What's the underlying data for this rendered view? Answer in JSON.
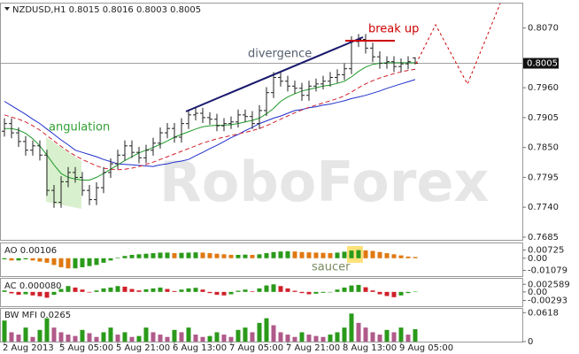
{
  "chart_data": [
    {
      "type": "ohlc",
      "header": "NZDUSD,H1  0.8015 0.8016 0.8003 0.8005",
      "categories": [
        "2 Aug 2013",
        null,
        null,
        null,
        null,
        null,
        null,
        null,
        "5 Aug 05:00",
        null,
        null,
        null,
        null,
        null,
        null,
        null,
        "5 Aug 21:00",
        null,
        null,
        null,
        null,
        null,
        null,
        null,
        "6 Aug 13:00",
        null,
        null,
        null,
        null,
        null,
        null,
        null,
        "7 Aug 05:00",
        null,
        null,
        null,
        null,
        null,
        null,
        null,
        "7 Aug 21:00",
        null,
        null,
        null,
        null,
        null,
        null,
        null,
        "8 Aug 13:00",
        null,
        null,
        null,
        null,
        null,
        null,
        null,
        "9 Aug 05:00",
        null,
        null
      ],
      "open": [
        0.788,
        0.7894,
        0.7877,
        0.7861,
        0.7845,
        0.7853,
        0.7836,
        0.7771,
        0.7749,
        0.7787,
        0.7804,
        0.7795,
        0.7771,
        0.7754,
        0.7776,
        0.7804,
        0.782,
        0.7836,
        0.7853,
        0.7841,
        0.7831,
        0.7845,
        0.7858,
        0.7877,
        0.7885,
        0.7869,
        0.7894,
        0.791,
        0.7913,
        0.7905,
        0.7902,
        0.789,
        0.7894,
        0.7897,
        0.791,
        0.7907,
        0.7894,
        0.7918,
        0.7951,
        0.7979,
        0.7972,
        0.7963,
        0.7959,
        0.7946,
        0.7963,
        0.7967,
        0.7972,
        0.7979,
        0.7984,
        0.7995,
        0.8045,
        0.8049,
        0.8033,
        0.8017,
        0.8005,
        0.8008,
        0.7999,
        0.8004,
        0.8015
      ],
      "high": [
        0.7904,
        0.7904,
        0.7887,
        0.7871,
        0.7863,
        0.7863,
        0.7846,
        0.7781,
        0.7797,
        0.7814,
        0.7814,
        0.7805,
        0.7781,
        0.7786,
        0.7814,
        0.783,
        0.7846,
        0.7863,
        0.7863,
        0.7851,
        0.7855,
        0.7868,
        0.7887,
        0.7895,
        0.7895,
        0.7904,
        0.792,
        0.7923,
        0.7923,
        0.7915,
        0.7912,
        0.7904,
        0.7907,
        0.792,
        0.792,
        0.7917,
        0.7928,
        0.7961,
        0.7989,
        0.7989,
        0.7982,
        0.7973,
        0.7969,
        0.7973,
        0.7977,
        0.7982,
        0.7989,
        0.7994,
        0.8005,
        0.8055,
        0.8059,
        0.8059,
        0.8043,
        0.8027,
        0.8018,
        0.8018,
        0.8014,
        0.8018,
        0.8016
      ],
      "low": [
        0.787,
        0.7867,
        0.7851,
        0.7835,
        0.7835,
        0.7826,
        0.7761,
        0.7739,
        0.7739,
        0.7777,
        0.7785,
        0.7761,
        0.7744,
        0.7744,
        0.7766,
        0.7794,
        0.781,
        0.7826,
        0.7831,
        0.7821,
        0.7821,
        0.7835,
        0.7848,
        0.7867,
        0.7859,
        0.7859,
        0.7884,
        0.79,
        0.7895,
        0.7892,
        0.788,
        0.788,
        0.7884,
        0.7887,
        0.7897,
        0.7884,
        0.7884,
        0.7908,
        0.7941,
        0.7962,
        0.7953,
        0.7949,
        0.7936,
        0.7936,
        0.7953,
        0.7957,
        0.7962,
        0.7969,
        0.7974,
        0.7985,
        0.8035,
        0.8023,
        0.8007,
        0.7995,
        0.7995,
        0.7989,
        0.7989,
        0.7994,
        0.8003
      ],
      "close": [
        0.7894,
        0.7877,
        0.7861,
        0.7845,
        0.7853,
        0.7836,
        0.7771,
        0.7749,
        0.7787,
        0.7804,
        0.7795,
        0.7771,
        0.7754,
        0.7776,
        0.7804,
        0.782,
        0.7836,
        0.7853,
        0.7841,
        0.7831,
        0.7845,
        0.7858,
        0.7877,
        0.7885,
        0.7869,
        0.7894,
        0.791,
        0.7913,
        0.7905,
        0.7902,
        0.789,
        0.7894,
        0.7897,
        0.791,
        0.7907,
        0.7894,
        0.7918,
        0.7951,
        0.7979,
        0.7972,
        0.7963,
        0.7959,
        0.7946,
        0.7963,
        0.7967,
        0.7972,
        0.7979,
        0.7984,
        0.7995,
        0.8045,
        0.8049,
        0.8033,
        0.8017,
        0.8005,
        0.8008,
        0.7999,
        0.8004,
        0.8008,
        0.8005
      ],
      "bar_color": "#222222",
      "series": [
        {
          "color": "#1f2ecc",
          "dash": false,
          "values": [
            0.7935,
            0.7927,
            0.7919,
            0.7911,
            0.7902,
            0.7894,
            0.7884,
            0.7874,
            0.7864,
            0.7855,
            0.7845,
            0.7841,
            0.7837,
            0.7833,
            0.7828,
            0.7824,
            0.782,
            0.7819,
            0.7818,
            0.7817,
            0.7816,
            0.7815,
            0.7818,
            0.782,
            0.7823,
            0.7825,
            0.7828,
            0.7835,
            0.7841,
            0.7848,
            0.7854,
            0.7861,
            0.7868,
            0.7874,
            0.7881,
            0.7887,
            0.7894,
            0.7899,
            0.7904,
            0.7908,
            0.7913,
            0.7918,
            0.792,
            0.7923,
            0.7925,
            0.7928,
            0.793,
            0.7933,
            0.7936,
            0.794,
            0.7943,
            0.7946,
            0.795,
            0.7954,
            0.7959,
            0.7963,
            0.7967,
            0.7971,
            0.7975
          ]
        },
        {
          "color": "#d0202a",
          "dash": true,
          "values": [
            0.791,
            0.7906,
            0.7902,
            0.7897,
            0.789,
            0.7882,
            0.7872,
            0.7862,
            0.7852,
            0.7843,
            0.7835,
            0.7828,
            0.7822,
            0.7816,
            0.7812,
            0.781,
            0.7809,
            0.781,
            0.7812,
            0.7815,
            0.7819,
            0.7823,
            0.7828,
            0.7833,
            0.7838,
            0.7843,
            0.7848,
            0.7853,
            0.7858,
            0.7862,
            0.7866,
            0.7869,
            0.7872,
            0.7875,
            0.7878,
            0.7881,
            0.7885,
            0.789,
            0.7896,
            0.7902,
            0.7908,
            0.7914,
            0.7919,
            0.7924,
            0.7928,
            0.7932,
            0.7936,
            0.794,
            0.7945,
            0.7952,
            0.796,
            0.7967,
            0.7973,
            0.7978,
            0.7982,
            0.7986,
            0.7989,
            0.7992,
            0.7994
          ]
        },
        {
          "color": "#1f9a2a",
          "dash": false,
          "values": [
            0.7885,
            0.7885,
            0.7882,
            0.7876,
            0.7866,
            0.7853,
            0.7836,
            0.7818,
            0.7802,
            0.7795,
            0.7792,
            0.779,
            0.779,
            0.7795,
            0.7802,
            0.781,
            0.7818,
            0.7826,
            0.7833,
            0.784,
            0.7845,
            0.785,
            0.7856,
            0.7862,
            0.7869,
            0.7874,
            0.7879,
            0.7884,
            0.7888,
            0.789,
            0.7891,
            0.7891,
            0.7892,
            0.7894,
            0.7897,
            0.79,
            0.7904,
            0.7912,
            0.7922,
            0.7935,
            0.7943,
            0.7949,
            0.7954,
            0.7957,
            0.796,
            0.7963,
            0.7965,
            0.7968,
            0.7972,
            0.798,
            0.799,
            0.7998,
            0.8003,
            0.8005,
            0.8006,
            0.8006,
            0.8006,
            0.8006,
            0.8006
          ]
        }
      ],
      "ylim": [
        0.768,
        0.8115
      ],
      "yticks": [
        {
          "value": 0.807,
          "label": "0.8070"
        },
        {
          "value": 0.796,
          "label": "0.7960"
        },
        0.7905,
        {
          "value": 0.785,
          "label": "0.7850"
        },
        0.7795,
        {
          "value": 0.774,
          "label": "0.7740"
        },
        0.7685
      ],
      "current_price": 0.8005,
      "annotations": [
        "divergence",
        "break up",
        "angulation"
      ],
      "watermark": "RoboForex"
    },
    {
      "type": "histogram",
      "title": "AO 0.00106",
      "annotation": "saucer",
      "values": [
        -0.001,
        -0.002,
        -0.002,
        -0.001,
        -0.002,
        -0.003,
        -0.004,
        -0.006,
        -0.008,
        -0.009,
        -0.009,
        -0.008,
        -0.007,
        -0.006,
        -0.004,
        -0.002,
        0.0005,
        0.002,
        0.003,
        0.0035,
        0.004,
        0.0045,
        0.005,
        0.005,
        0.0045,
        0.0048,
        0.005,
        0.0052,
        0.005,
        0.0045,
        0.004,
        0.0035,
        0.003,
        0.003,
        0.0032,
        0.003,
        0.0035,
        0.0045,
        0.0055,
        0.006,
        0.0062,
        0.006,
        0.0055,
        0.0052,
        0.005,
        0.0048,
        0.0046,
        0.005,
        0.0058,
        0.0068,
        0.0072,
        0.007,
        0.0065,
        0.0055,
        0.0045,
        0.0035,
        0.0025,
        0.0015,
        0.00106
      ],
      "up_color": "#2a9a1a",
      "down_color": "#e07810",
      "ylim": [
        -0.0159,
        0.0132
      ],
      "yticks": [
        0.00725,
        {
          "value": 0,
          "label": "0.00"
        },
        -0.01079
      ]
    },
    {
      "type": "histogram",
      "title": "AC 0.000080",
      "values": [
        0.0005,
        -0.0005,
        -0.001,
        -0.0008,
        -0.0012,
        -0.0015,
        -0.002,
        -0.001,
        0.001,
        0.002,
        0.0015,
        0.0008,
        -0.0002,
        0.0005,
        0.0012,
        0.0015,
        0.002,
        0.0018,
        0.001,
        0.0005,
        0.0009,
        0.0012,
        0.0015,
        0.001,
        0.0003,
        0.0008,
        0.0012,
        0.0014,
        0.0008,
        -0.0004,
        -0.001,
        -0.0012,
        -0.0008,
        0.0004,
        0.0008,
        0.0002,
        0.0012,
        0.0022,
        0.0026,
        0.002,
        0.0012,
        0.0004,
        -0.0004,
        -0.0008,
        -0.0006,
        -0.0003,
        0,
        0.0008,
        0.0015,
        0.0022,
        0.0024,
        0.0016,
        0.0005,
        -0.0008,
        -0.0014,
        -0.0018,
        -0.0012,
        -0.0004,
        8e-05
      ],
      "up_color": "#2a9a1a",
      "down_color": "#d0202a",
      "ylim": [
        -0.0049,
        0.0045
      ],
      "yticks": [
        0.002589,
        {
          "value": 0,
          "label": "0.00"
        },
        -0.00293
      ]
    },
    {
      "type": "histogram",
      "title": "BW MFI 0.0265",
      "values": [
        0.045,
        0.02,
        0.015,
        0.03,
        0.01,
        0.025,
        0.05,
        0.03,
        0.02,
        0.015,
        0.012,
        0.025,
        0.018,
        0.01,
        0.02,
        0.03,
        0.015,
        0.02,
        0.01,
        0.012,
        0.03,
        0.02,
        0.015,
        0.01,
        0.025,
        0.02,
        0.03,
        0.015,
        0.01,
        0.012,
        0.02,
        0.015,
        0.01,
        0.025,
        0.03,
        0.02,
        0.04,
        0.05,
        0.035,
        0.02,
        0.015,
        0.01,
        0.02,
        0.015,
        0.012,
        0.01,
        0.015,
        0.02,
        0.03,
        0.06,
        0.04,
        0.03,
        0.02,
        0.015,
        0.025,
        0.02,
        0.03,
        0.015,
        0.0265
      ],
      "up_color": "#2a9a1a",
      "down_color": "#b05a8a",
      "ylim": [
        0,
        0.07
      ],
      "yticks": [
        0.0618,
        0
      ]
    }
  ]
}
